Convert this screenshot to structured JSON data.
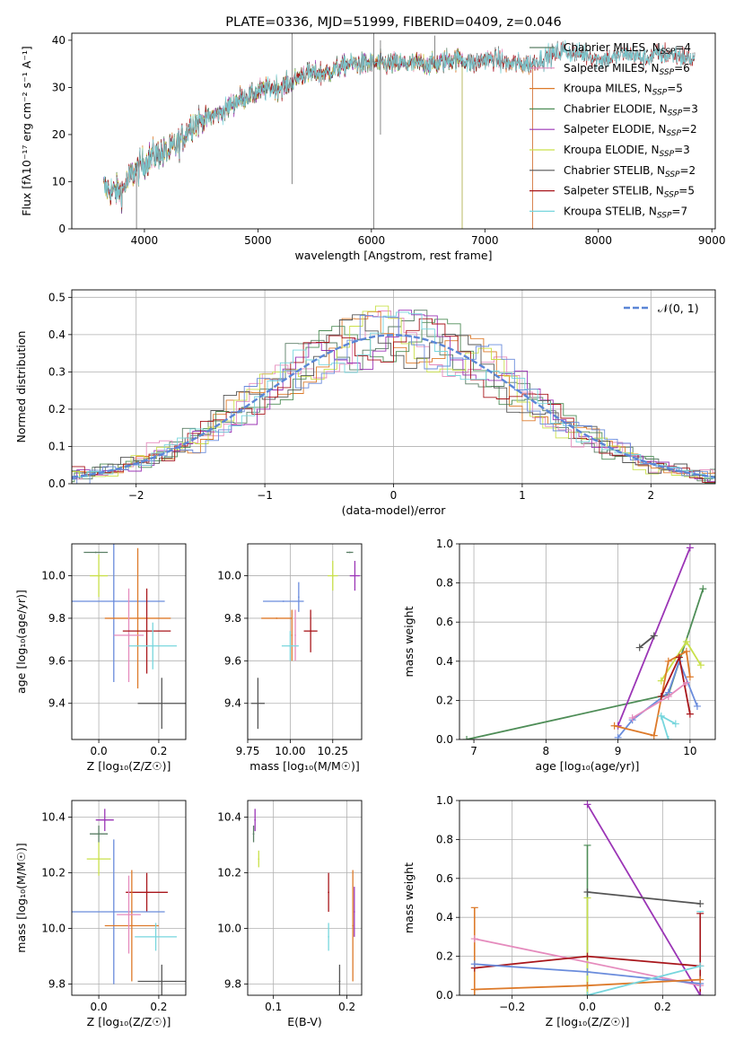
{
  "chart_data": [
    {
      "id": "spectrum",
      "type": "line",
      "title": "PLATE=0336, MJD=51999, FIBERID=0409, z=0.046",
      "xlabel": "wavelength [Angstrom, rest frame]",
      "ylabel": "Flux [fλ10⁻¹⁷ erg cm⁻² s⁻¹ A⁻¹]",
      "xlim": [
        3360,
        9030
      ],
      "ylim": [
        0,
        41.5
      ],
      "xticks": [
        4000,
        5000,
        6000,
        7000,
        8000,
        9000
      ],
      "yticks": [
        0,
        10,
        20,
        30,
        40
      ],
      "grid": false,
      "legend_position": "upper right",
      "continuum": [
        [
          3640,
          9
        ],
        [
          3700,
          8
        ],
        [
          3800,
          8
        ],
        [
          3900,
          12
        ],
        [
          4000,
          14
        ],
        [
          4100,
          16
        ],
        [
          4200,
          16
        ],
        [
          4300,
          18
        ],
        [
          4400,
          22
        ],
        [
          4500,
          23
        ],
        [
          4600,
          24
        ],
        [
          4700,
          25
        ],
        [
          4800,
          27
        ],
        [
          4900,
          28
        ],
        [
          5000,
          29
        ],
        [
          5100,
          30
        ],
        [
          5200,
          30
        ],
        [
          5300,
          31
        ],
        [
          5400,
          33
        ],
        [
          5500,
          33
        ],
        [
          5600,
          33
        ],
        [
          5700,
          34
        ],
        [
          5800,
          35
        ],
        [
          5900,
          35
        ],
        [
          6000,
          35
        ],
        [
          6100,
          35
        ],
        [
          6200,
          35
        ],
        [
          6300,
          35
        ],
        [
          6400,
          35
        ],
        [
          6500,
          35
        ],
        [
          6600,
          35
        ],
        [
          6700,
          36
        ],
        [
          6800,
          36
        ],
        [
          6900,
          35
        ],
        [
          7000,
          36
        ],
        [
          7100,
          36
        ],
        [
          7200,
          35
        ],
        [
          7300,
          35
        ],
        [
          7400,
          35
        ],
        [
          7500,
          36
        ],
        [
          7600,
          37
        ],
        [
          7700,
          38
        ],
        [
          7800,
          37
        ],
        [
          7900,
          37
        ],
        [
          8000,
          36
        ],
        [
          8100,
          36
        ],
        [
          8200,
          37
        ],
        [
          8300,
          37
        ],
        [
          8400,
          36
        ],
        [
          8500,
          37
        ],
        [
          8600,
          37
        ],
        [
          8700,
          37
        ],
        [
          8800,
          36
        ]
      ],
      "series": [
        {
          "name": "Chabrier MILES, N$_{SSP}$=4",
          "color": "#5b7f66",
          "xmax": 7420
        },
        {
          "name": "Salpeter MILES, N$_{SSP}$=6",
          "color": "#e58bbd",
          "xmax": 7420
        },
        {
          "name": "Kroupa MILES, N$_{SSP}$=5",
          "color": "#dd7a2a",
          "xmax": 7420
        },
        {
          "name": "Chabrier ELODIE, N$_{SSP}$=3",
          "color": "#4e8d57",
          "xmax": 6800
        },
        {
          "name": "Salpeter ELODIE, N$_{SSP}$=2",
          "color": "#9b35b6",
          "xmax": 6800
        },
        {
          "name": "Kroupa ELODIE, N$_{SSP}$=3",
          "color": "#c9e04a",
          "xmax": 6800
        },
        {
          "name": "Chabrier STELIB, N$_{SSP}$=2",
          "color": "#555555",
          "xmax": 8850
        },
        {
          "name": "Salpeter STELIB, N$_{SSP}$=5",
          "color": "#a8161b",
          "xmax": 8850
        },
        {
          "name": "Kroupa STELIB, N$_{SSP}$=7",
          "color": "#77d6dd",
          "xmax": 8850
        }
      ]
    },
    {
      "id": "residuals",
      "type": "histogram",
      "xlabel": "(data-model)/error",
      "ylabel": "Normed distribution",
      "xlim": [
        -2.5,
        2.5
      ],
      "ylim": [
        0,
        0.52
      ],
      "xticks": [
        -2,
        -1,
        0,
        1,
        2
      ],
      "yticks": [
        0.0,
        0.1,
        0.2,
        0.3,
        0.4,
        0.5
      ],
      "grid": true,
      "legend_position": "upper right",
      "legend": "𝒩(0, 1)",
      "reference_color": "#5b86d6",
      "bin_width": 0.1,
      "colors": [
        "#5b7f66",
        "#e58bbd",
        "#dd7a2a",
        "#4e8d57",
        "#9b35b6",
        "#c9e04a",
        "#555555",
        "#a8161b",
        "#77d6dd",
        "#6a8cdc"
      ]
    },
    {
      "id": "age-vs-z",
      "type": "errorbar",
      "xlabel": "Z [log₁₀(Z/Z☉)]",
      "ylabel": "age  [log₁₀(age/yr)]",
      "xlim": [
        -0.09,
        0.29
      ],
      "ylim": [
        9.23,
        10.15
      ],
      "xticks": [
        0.0,
        0.2
      ],
      "yticks": [
        9.4,
        9.6,
        9.8,
        10.0
      ],
      "grid": true,
      "points": [
        {
          "x": -0.01,
          "y": 10.11,
          "xerr": 0.04,
          "yerr": 0.0,
          "color": "#5b7f66"
        },
        {
          "x": 0.0,
          "y": 10.0,
          "xerr": 0.03,
          "yerr": 0.1,
          "color": "#c9e04a"
        },
        {
          "x": 0.05,
          "y": 9.88,
          "xerr": 0.17,
          "yerr": 0.38,
          "color": "#6a8cdc"
        },
        {
          "x": 0.13,
          "y": 9.8,
          "xerr": 0.11,
          "yerr": 0.33,
          "color": "#dd7a2a"
        },
        {
          "x": 0.1,
          "y": 9.72,
          "xerr": 0.05,
          "yerr": 0.22,
          "color": "#e58bbd"
        },
        {
          "x": 0.16,
          "y": 9.74,
          "xerr": 0.08,
          "yerr": 0.2,
          "color": "#a8161b"
        },
        {
          "x": 0.18,
          "y": 9.67,
          "xerr": 0.08,
          "yerr": 0.11,
          "color": "#77d6dd"
        },
        {
          "x": 0.21,
          "y": 9.4,
          "xerr": 0.08,
          "yerr": 0.12,
          "color": "#555555"
        }
      ]
    },
    {
      "id": "age-vs-mass",
      "type": "errorbar",
      "xlabel": "mass [log₁₀(M/M☉)]",
      "ylabel": "",
      "xlim": [
        9.75,
        10.42
      ],
      "ylim": [
        9.23,
        10.15
      ],
      "xticks": [
        9.75,
        10.0,
        10.25
      ],
      "xticklabels": [
        "9.75",
        "10.00",
        "10.25"
      ],
      "yticks": [
        9.4,
        9.6,
        9.8,
        10.0
      ],
      "grid": true,
      "points": [
        {
          "x": 10.35,
          "y": 10.11,
          "xerr": 0.02,
          "yerr": 0.0,
          "color": "#5b7f66"
        },
        {
          "x": 10.38,
          "y": 10.0,
          "xerr": 0.03,
          "yerr": 0.07,
          "color": "#9b35b6"
        },
        {
          "x": 10.25,
          "y": 10.0,
          "xerr": 0.03,
          "yerr": 0.07,
          "color": "#c9e04a"
        },
        {
          "x": 9.96,
          "y": 9.88,
          "xerr": 0.12,
          "yerr": 0.0,
          "color": "#6a8cdc"
        },
        {
          "x": 10.05,
          "y": 9.9,
          "xerr": 0.0,
          "yerr": 0.07,
          "color": "#6a8cdc"
        },
        {
          "x": 9.92,
          "y": 9.8,
          "xerr": 0.09,
          "yerr": 0.0,
          "color": "#dd7a2a"
        },
        {
          "x": 10.01,
          "y": 9.72,
          "xerr": 0.0,
          "yerr": 0.12,
          "color": "#dd7a2a"
        },
        {
          "x": 10.03,
          "y": 9.72,
          "xerr": 0.0,
          "yerr": 0.12,
          "color": "#e58bbd"
        },
        {
          "x": 10.12,
          "y": 9.74,
          "xerr": 0.04,
          "yerr": 0.1,
          "color": "#a8161b"
        },
        {
          "x": 10.0,
          "y": 9.67,
          "xerr": 0.05,
          "yerr": 0.07,
          "color": "#77d6dd"
        },
        {
          "x": 9.81,
          "y": 9.4,
          "xerr": 0.04,
          "yerr": 0.12,
          "color": "#555555"
        }
      ]
    },
    {
      "id": "mass-weight-vs-age",
      "type": "line",
      "xlabel": "age  [log₁₀(age/yr)]",
      "ylabel": "mass weight",
      "xlim": [
        6.8,
        10.35
      ],
      "ylim": [
        0,
        1.0
      ],
      "xticks": [
        7,
        8,
        9,
        10
      ],
      "yticks": [
        0.0,
        0.2,
        0.4,
        0.6,
        0.8,
        1.0
      ],
      "grid": true,
      "series": [
        {
          "color": "#4e8d57",
          "points": [
            [
              6.9,
              0.0
            ],
            [
              9.7,
              0.23
            ],
            [
              10.18,
              0.77
            ]
          ]
        },
        {
          "color": "#9b35b6",
          "points": [
            [
              9.0,
              0.07
            ],
            [
              10.0,
              0.98
            ]
          ]
        },
        {
          "color": "#555555",
          "points": [
            [
              9.3,
              0.47
            ],
            [
              9.5,
              0.53
            ]
          ]
        },
        {
          "color": "#c9e04a",
          "points": [
            [
              9.6,
              0.3
            ],
            [
              9.95,
              0.5
            ],
            [
              10.15,
              0.38
            ]
          ]
        },
        {
          "color": "#6a8cdc",
          "points": [
            [
              9.0,
              0.01
            ],
            [
              9.2,
              0.1
            ],
            [
              9.7,
              0.24
            ],
            [
              9.85,
              0.4
            ],
            [
              10.1,
              0.17
            ]
          ]
        },
        {
          "color": "#dd7a2a",
          "points": [
            [
              8.95,
              0.07
            ],
            [
              9.5,
              0.02
            ],
            [
              9.7,
              0.4
            ],
            [
              9.95,
              0.45
            ],
            [
              10.0,
              0.32
            ]
          ]
        },
        {
          "color": "#a8161b",
          "points": [
            [
              9.6,
              0.22
            ],
            [
              9.85,
              0.42
            ],
            [
              10.0,
              0.13
            ]
          ]
        },
        {
          "color": "#e58bbd",
          "points": [
            [
              9.2,
              0.11
            ],
            [
              9.7,
              0.22
            ],
            [
              9.95,
              0.29
            ]
          ]
        },
        {
          "color": "#77d6dd",
          "points": [
            [
              9.8,
              0.08
            ],
            [
              9.6,
              0.12
            ],
            [
              9.7,
              0.0
            ]
          ]
        }
      ]
    },
    {
      "id": "mass-vs-z",
      "type": "errorbar",
      "xlabel": "Z [log₁₀(Z/Z☉)]",
      "ylabel": "mass [log₁₀(M/M☉)]",
      "xlim": [
        -0.09,
        0.29
      ],
      "ylim": [
        9.76,
        10.46
      ],
      "xticks": [
        0.0,
        0.2
      ],
      "yticks": [
        9.8,
        10.0,
        10.2,
        10.4
      ],
      "grid": true,
      "points": [
        {
          "x": 0.02,
          "y": 10.39,
          "xerr": 0.03,
          "yerr": 0.04,
          "color": "#9b35b6"
        },
        {
          "x": 0.0,
          "y": 10.34,
          "xerr": 0.03,
          "yerr": 0.03,
          "color": "#5b7f66"
        },
        {
          "x": 0.0,
          "y": 10.25,
          "xerr": 0.04,
          "yerr": 0.06,
          "color": "#c9e04a"
        },
        {
          "x": 0.16,
          "y": 10.13,
          "xerr": 0.07,
          "yerr": 0.07,
          "color": "#a8161b"
        },
        {
          "x": 0.05,
          "y": 10.06,
          "xerr": 0.17,
          "yerr": 0.26,
          "color": "#6a8cdc"
        },
        {
          "x": 0.11,
          "y": 10.01,
          "xerr": 0.09,
          "yerr": 0.2,
          "color": "#dd7a2a"
        },
        {
          "x": 0.1,
          "y": 10.05,
          "xerr": 0.04,
          "yerr": 0.14,
          "color": "#e58bbd"
        },
        {
          "x": 0.19,
          "y": 9.97,
          "xerr": 0.07,
          "yerr": 0.05,
          "color": "#77d6dd"
        },
        {
          "x": 0.21,
          "y": 9.81,
          "xerr": 0.08,
          "yerr": 0.06,
          "color": "#555555"
        }
      ]
    },
    {
      "id": "mass-vs-ebv",
      "type": "errorbar",
      "xlabel": "E(B-V)",
      "ylabel": "",
      "xlim": [
        0.065,
        0.22
      ],
      "ylim": [
        9.76,
        10.46
      ],
      "xticks": [
        0.1,
        0.2
      ],
      "yticks": [
        9.8,
        10.0,
        10.2,
        10.4
      ],
      "grid": true,
      "points": [
        {
          "x": 0.075,
          "y": 10.39,
          "xerr": 0.0,
          "yerr": 0.04,
          "color": "#9b35b6"
        },
        {
          "x": 0.073,
          "y": 10.34,
          "xerr": 0.0,
          "yerr": 0.03,
          "color": "#5b7f66"
        },
        {
          "x": 0.08,
          "y": 10.25,
          "xerr": 0.0,
          "yerr": 0.03,
          "color": "#c9e04a"
        },
        {
          "x": 0.175,
          "y": 10.13,
          "xerr": 0.0,
          "yerr": 0.07,
          "color": "#a8161b"
        },
        {
          "x": 0.21,
          "y": 10.06,
          "xerr": 0.0,
          "yerr": 0.09,
          "color": "#9b35b6"
        },
        {
          "x": 0.208,
          "y": 10.01,
          "xerr": 0.0,
          "yerr": 0.2,
          "color": "#dd7a2a"
        },
        {
          "x": 0.175,
          "y": 9.97,
          "xerr": 0.0,
          "yerr": 0.05,
          "color": "#77d6dd"
        },
        {
          "x": 0.19,
          "y": 9.81,
          "xerr": 0.0,
          "yerr": 0.06,
          "color": "#555555"
        }
      ]
    },
    {
      "id": "mass-weight-vs-z",
      "type": "line",
      "xlabel": "Z [log₁₀(Z/Z☉)]",
      "ylabel": "mass weight",
      "xlim": [
        -0.34,
        0.34
      ],
      "ylim": [
        0,
        1.0
      ],
      "xticks": [
        -0.2,
        0.0,
        0.2
      ],
      "yticks": [
        0.0,
        0.2,
        0.4,
        0.6,
        0.8,
        1.0
      ],
      "grid": true,
      "series": [
        {
          "color": "#9b35b6",
          "points": [
            [
              0.0,
              0.98
            ],
            [
              0.3,
              0.0
            ]
          ]
        },
        {
          "color": "#555555",
          "points": [
            [
              0.0,
              0.53
            ],
            [
              0.3,
              0.47
            ]
          ]
        },
        {
          "color": "#e58bbd",
          "points": [
            [
              -0.3,
              0.29
            ],
            [
              0.3,
              0.05
            ]
          ]
        },
        {
          "color": "#a8161b",
          "points": [
            [
              -0.3,
              0.14
            ],
            [
              0.0,
              0.2
            ],
            [
              0.3,
              0.15
            ]
          ]
        },
        {
          "color": "#6a8cdc",
          "points": [
            [
              -0.3,
              0.16
            ],
            [
              0.0,
              0.12
            ],
            [
              0.3,
              0.06
            ]
          ]
        },
        {
          "color": "#dd7a2a",
          "points": [
            [
              -0.3,
              0.03
            ],
            [
              0.0,
              0.05
            ],
            [
              0.3,
              0.08
            ]
          ]
        },
        {
          "color": "#77d6dd",
          "points": [
            [
              0.0,
              0.0
            ],
            [
              0.3,
              0.15
            ]
          ]
        }
      ],
      "stems": [
        {
          "x": -0.3,
          "y0": 0.0,
          "y1": 0.45,
          "color": "#dd7a2a"
        },
        {
          "x": 0.0,
          "y0": 0.0,
          "y1": 0.77,
          "color": "#4e8d57"
        },
        {
          "x": 0.0,
          "y0": 0.0,
          "y1": 0.5,
          "color": "#c9e04a"
        },
        {
          "x": 0.3,
          "y0": 0.0,
          "y1": 0.43,
          "color": "#77d6dd"
        },
        {
          "x": 0.3,
          "y0": 0.0,
          "y1": 0.42,
          "color": "#a8161b"
        }
      ]
    }
  ]
}
